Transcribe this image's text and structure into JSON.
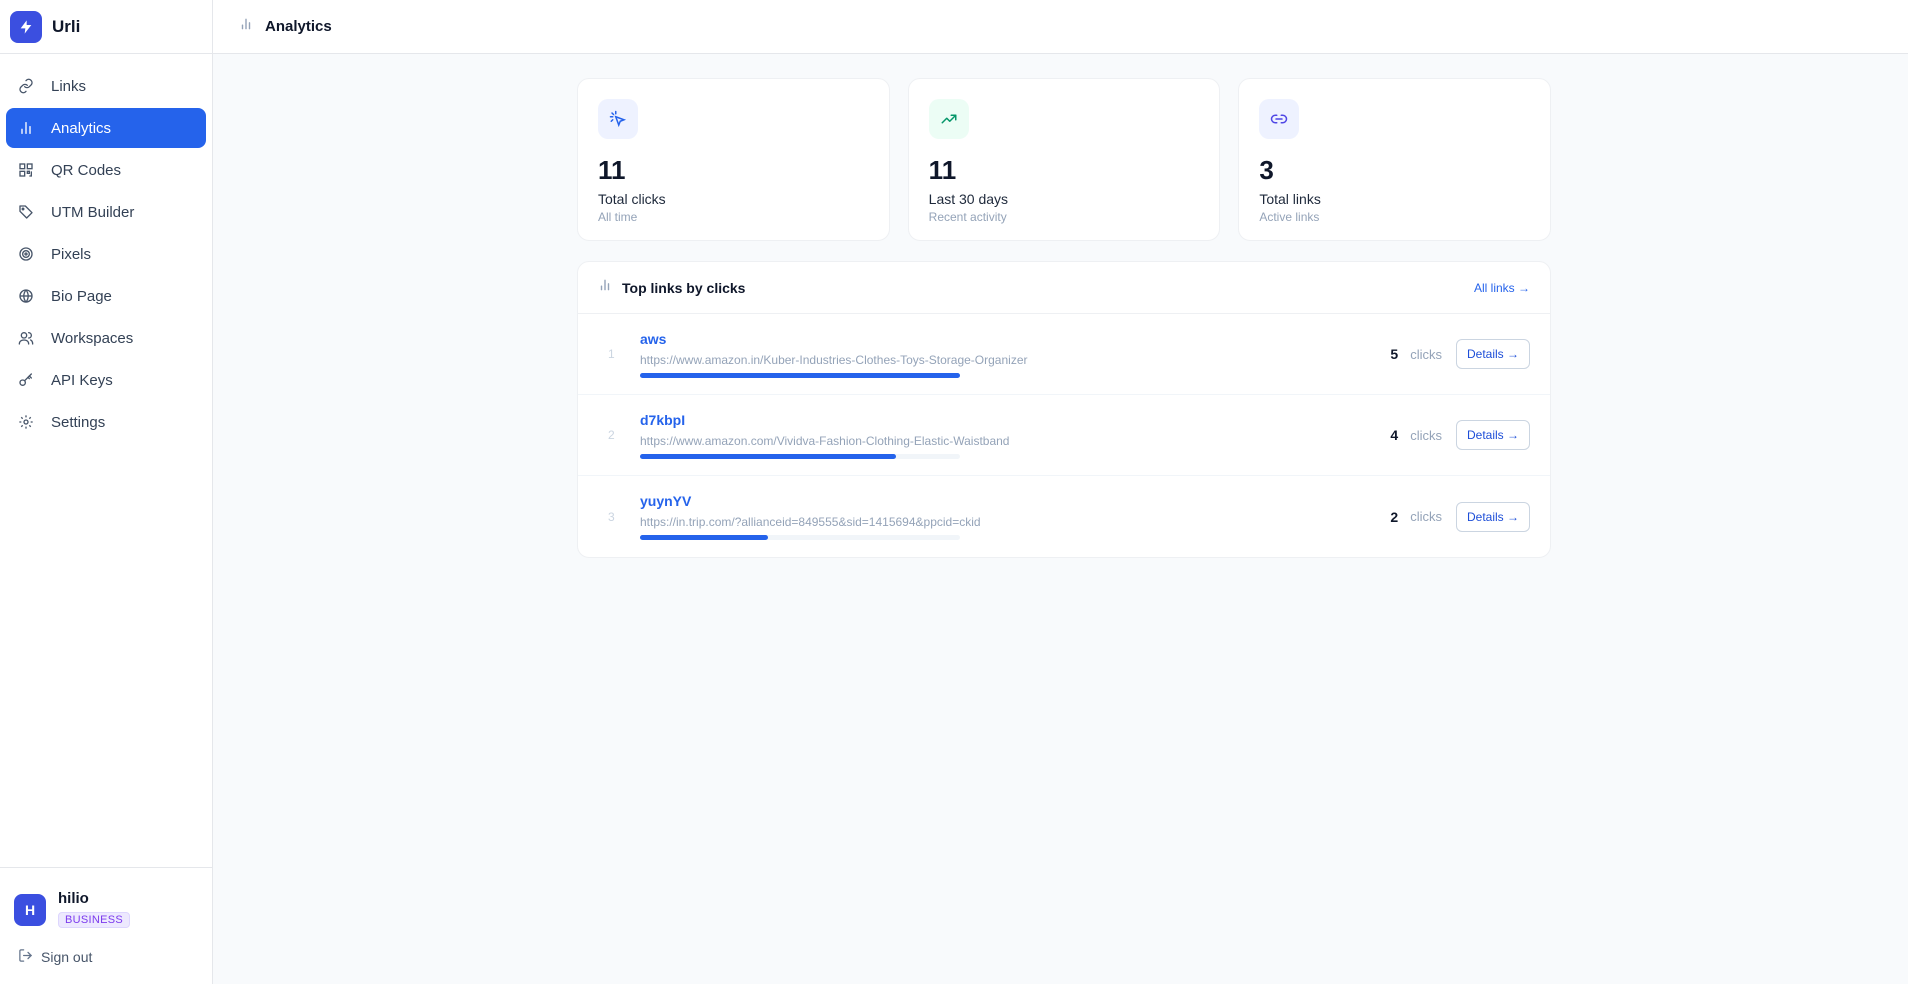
{
  "app": {
    "name": "Urli"
  },
  "sidebar": {
    "items": [
      {
        "label": "Links",
        "icon": "link-icon"
      },
      {
        "label": "Analytics",
        "icon": "bar-chart-icon",
        "active": true
      },
      {
        "label": "QR Codes",
        "icon": "qr-code-icon"
      },
      {
        "label": "UTM Builder",
        "icon": "tag-icon"
      },
      {
        "label": "Pixels",
        "icon": "target-icon"
      },
      {
        "label": "Bio Page",
        "icon": "globe-icon"
      },
      {
        "label": "Workspaces",
        "icon": "users-icon"
      },
      {
        "label": "API Keys",
        "icon": "key-icon"
      },
      {
        "label": "Settings",
        "icon": "gear-icon"
      }
    ]
  },
  "user": {
    "initial": "H",
    "name": "hilio",
    "plan": "BUSINESS",
    "signout_label": "Sign out"
  },
  "header": {
    "title": "Analytics"
  },
  "stats": [
    {
      "value": "11",
      "label": "Total clicks",
      "sub": "All time",
      "icon": "cursor-click-icon",
      "bg": "#eef2ff",
      "color": "#2563eb"
    },
    {
      "value": "11",
      "label": "Last 30 days",
      "sub": "Recent activity",
      "icon": "trending-up-icon",
      "bg": "#ecfdf5",
      "color": "#059669"
    },
    {
      "value": "3",
      "label": "Total links",
      "sub": "Active links",
      "icon": "link-icon",
      "bg": "#eef2ff",
      "color": "#4f46e5"
    }
  ],
  "top_links": {
    "title": "Top links by clicks",
    "all_label": "All links →",
    "unit": "clicks",
    "details_label": "Details →",
    "rows": [
      {
        "rank": "1",
        "name": "aws",
        "url": "https://www.amazon.in/Kuber-Industries-Clothes-Toys-Storage-Organizer",
        "clicks": "5",
        "share": 1.0
      },
      {
        "rank": "2",
        "name": "d7kbpI",
        "url": "https://www.amazon.com/Vividva-Fashion-Clothing-Elastic-Waistband",
        "clicks": "4",
        "share": 0.8
      },
      {
        "rank": "3",
        "name": "yuynYV",
        "url": "https://in.trip.com/?allianceid=849555&sid=1415694&ppcid=ckid",
        "clicks": "2",
        "share": 0.4
      }
    ]
  }
}
